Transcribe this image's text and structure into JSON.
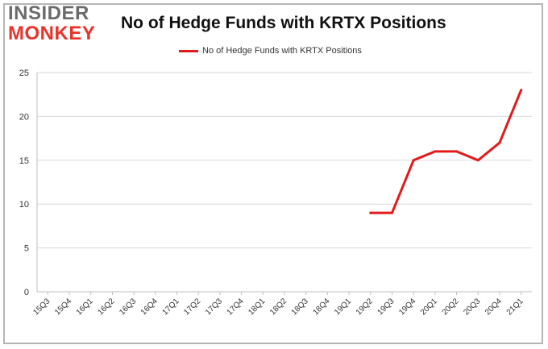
{
  "logo": {
    "line1": "INSIDER",
    "line2": "MONKEY"
  },
  "chart_data": {
    "type": "line",
    "title": "No of Hedge Funds with KRTX Positions",
    "xlabel": "",
    "ylabel": "",
    "categories": [
      "15Q3",
      "15Q4",
      "16Q1",
      "16Q2",
      "16Q3",
      "16Q4",
      "17Q1",
      "17Q2",
      "17Q3",
      "17Q4",
      "18Q1",
      "18Q2",
      "18Q3",
      "18Q4",
      "19Q1",
      "19Q2",
      "19Q3",
      "19Q4",
      "20Q1",
      "20Q2",
      "20Q3",
      "20Q4",
      "21Q1"
    ],
    "series": [
      {
        "name": "No of Hedge Funds with KRTX Positions",
        "color": "#e31a1c",
        "values": [
          null,
          null,
          null,
          null,
          null,
          null,
          null,
          null,
          null,
          null,
          null,
          null,
          null,
          null,
          null,
          9,
          9,
          15,
          16,
          16,
          15,
          17,
          23
        ]
      }
    ],
    "ylim": [
      0,
      25
    ],
    "yticks": [
      0,
      5,
      10,
      15,
      20,
      25
    ],
    "grid": true,
    "legend_position": "top-center"
  }
}
